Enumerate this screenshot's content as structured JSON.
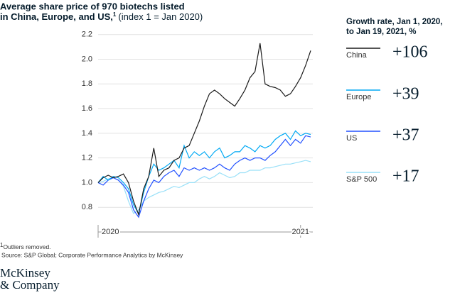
{
  "chart_data": {
    "type": "line",
    "title": [
      "Average share price of 970 biotechs listed",
      "in China, Europe, and US,"
    ],
    "title_note": "1",
    "subtitle": "(index 1 = Jan 2020)",
    "x": [
      2020,
      2020.025,
      2020.05,
      2020.075,
      2020.1,
      2020.125,
      2020.15,
      2020.175,
      2020.2,
      2020.225,
      2020.25,
      2020.275,
      2020.3,
      2020.325,
      2020.35,
      2020.375,
      2020.4,
      2020.425,
      2020.45,
      2020.475,
      2020.5,
      2020.525,
      2020.55,
      2020.575,
      2020.6,
      2020.625,
      2020.65,
      2020.675,
      2020.7,
      2020.725,
      2020.75,
      2020.775,
      2020.8,
      2020.825,
      2020.85,
      2020.875,
      2020.9,
      2020.925,
      2020.95,
      2020.975,
      2021,
      2021.025,
      2021.05
    ],
    "xlim": [
      2020,
      2021.05
    ],
    "xticks": [
      2020,
      2021
    ],
    "ylim": [
      0.6,
      2.25
    ],
    "yticks": [
      0.8,
      {
        "value": 1.0,
        "label": "1.0"
      },
      1.2,
      1.4,
      1.6,
      1.8,
      {
        "value": 2.0,
        "label": "2.0"
      },
      2.2
    ],
    "grid": true,
    "series": [
      {
        "name": "China",
        "color": "#1a1a1a",
        "values": [
          1.0,
          1.04,
          1.06,
          1.04,
          1.05,
          1.07,
          1.0,
          0.85,
          0.74,
          0.95,
          1.05,
          1.28,
          1.05,
          1.1,
          1.12,
          1.18,
          1.2,
          1.28,
          1.3,
          1.4,
          1.5,
          1.62,
          1.72,
          1.75,
          1.72,
          1.68,
          1.65,
          1.62,
          1.68,
          1.75,
          1.85,
          1.9,
          2.13,
          1.8,
          1.78,
          1.77,
          1.75,
          1.7,
          1.72,
          1.78,
          1.85,
          1.95,
          2.07
        ]
      },
      {
        "name": "Europe",
        "color": "#00a9f4",
        "values": [
          1.0,
          1.05,
          1.02,
          1.05,
          1.04,
          1.0,
          0.95,
          0.82,
          0.75,
          0.92,
          1.05,
          1.15,
          1.1,
          1.12,
          1.15,
          1.18,
          1.12,
          1.3,
          1.2,
          1.25,
          1.22,
          1.25,
          1.2,
          1.25,
          1.28,
          1.2,
          1.22,
          1.25,
          1.25,
          1.3,
          1.28,
          1.25,
          1.3,
          1.28,
          1.3,
          1.35,
          1.38,
          1.4,
          1.35,
          1.42,
          1.38,
          1.4,
          1.39
        ]
      },
      {
        "name": "US",
        "color": "#2251ff",
        "values": [
          1.0,
          0.98,
          1.02,
          1.04,
          1.02,
          0.98,
          0.92,
          0.78,
          0.72,
          0.85,
          0.95,
          1.02,
          1.0,
          1.05,
          1.08,
          1.1,
          1.05,
          1.12,
          1.1,
          1.12,
          1.1,
          1.12,
          1.1,
          1.12,
          1.15,
          1.12,
          1.1,
          1.15,
          1.18,
          1.2,
          1.18,
          1.2,
          1.2,
          1.18,
          1.22,
          1.25,
          1.3,
          1.35,
          1.3,
          1.35,
          1.32,
          1.38,
          1.37
        ]
      },
      {
        "name": "S&P 500",
        "color": "#99e0f8",
        "values": [
          1.0,
          1.01,
          1.03,
          1.04,
          1.02,
          0.97,
          0.85,
          0.75,
          0.78,
          0.85,
          0.88,
          0.9,
          0.92,
          0.93,
          0.95,
          0.97,
          0.96,
          0.98,
          1.0,
          1.0,
          1.03,
          1.05,
          1.03,
          1.05,
          1.08,
          1.06,
          1.04,
          1.05,
          1.08,
          1.08,
          1.1,
          1.1,
          1.1,
          1.12,
          1.12,
          1.13,
          1.14,
          1.15,
          1.15,
          1.16,
          1.17,
          1.18,
          1.17
        ]
      }
    ],
    "growth": {
      "title": [
        "Growth rate, Jan 1, 2020,",
        "to Jan 19, 2021, %"
      ],
      "values": [
        106,
        39,
        37,
        17
      ],
      "value_labels": [
        "+106",
        "+39",
        "+37",
        "+17"
      ]
    }
  },
  "footnotes": {
    "ref": "1",
    "text": "Outliers removed.",
    "source": "Source: S&P Global; Corporate Performance Analytics by McKinsey"
  },
  "logo": [
    "McKinsey",
    "& Company"
  ]
}
